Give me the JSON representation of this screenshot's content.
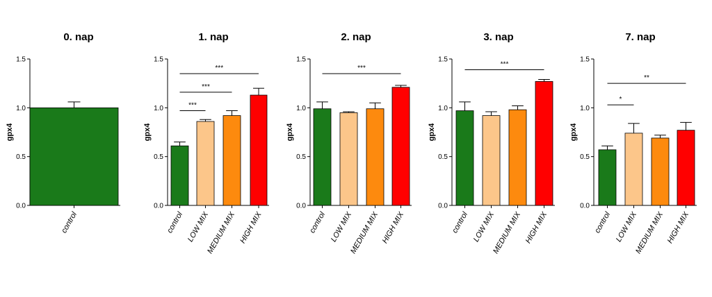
{
  "chart_data": [
    {
      "type": "bar",
      "title": "0. nap",
      "ylabel": "gpx4",
      "ylim": [
        0,
        1.5
      ],
      "yticks": [
        "0.0",
        "0.5",
        "1.0",
        "1.5"
      ],
      "categories": [
        "control"
      ],
      "values": [
        1.0
      ],
      "errors": [
        0.06
      ],
      "colors": [
        "#1a7a1a"
      ],
      "significance": []
    },
    {
      "type": "bar",
      "title": "1. nap",
      "ylabel": "gpx4",
      "ylim": [
        0,
        1.5
      ],
      "yticks": [
        "0.0",
        "0.5",
        "1.0",
        "1.5"
      ],
      "categories": [
        "control",
        "LOW MIX",
        "MEDIUM MIX",
        "HIGH MIX"
      ],
      "values": [
        0.61,
        0.86,
        0.92,
        1.13
      ],
      "errors": [
        0.04,
        0.02,
        0.05,
        0.07
      ],
      "colors": [
        "#1a7a1a",
        "#fcc68a",
        "#fd8a0e",
        "#ff0000"
      ],
      "significance": [
        {
          "from": 0,
          "to": 1,
          "y": 0.97,
          "label": "***"
        },
        {
          "from": 0,
          "to": 2,
          "y": 1.16,
          "label": "***"
        },
        {
          "from": 0,
          "to": 3,
          "y": 1.35,
          "label": "***"
        }
      ]
    },
    {
      "type": "bar",
      "title": "2. nap",
      "ylabel": "gpx4",
      "ylim": [
        0,
        1.5
      ],
      "yticks": [
        "0.0",
        "0.5",
        "1.0",
        "1.5"
      ],
      "categories": [
        "control",
        "LOW MIX",
        "MEDIUM MIX",
        "HIGH MIX"
      ],
      "values": [
        0.99,
        0.95,
        0.99,
        1.21
      ],
      "errors": [
        0.07,
        0.01,
        0.06,
        0.02
      ],
      "colors": [
        "#1a7a1a",
        "#fcc68a",
        "#fd8a0e",
        "#ff0000"
      ],
      "significance": [
        {
          "from": 0,
          "to": 3,
          "y": 1.35,
          "label": "***"
        }
      ]
    },
    {
      "type": "bar",
      "title": "3. nap",
      "ylabel": "gpx4",
      "ylim": [
        0,
        1.5
      ],
      "yticks": [
        "0.0",
        "0.5",
        "1.0",
        "1.5"
      ],
      "categories": [
        "control",
        "LOW MIX",
        "MEDIUM MIX",
        "HIGH MIX"
      ],
      "values": [
        0.97,
        0.92,
        0.98,
        1.27
      ],
      "errors": [
        0.09,
        0.04,
        0.04,
        0.02
      ],
      "colors": [
        "#1a7a1a",
        "#fcc68a",
        "#fd8a0e",
        "#ff0000"
      ],
      "significance": [
        {
          "from": 0,
          "to": 3,
          "y": 1.39,
          "label": "***"
        }
      ]
    },
    {
      "type": "bar",
      "title": "7. nap",
      "ylabel": "gpx4",
      "ylim": [
        0,
        1.5
      ],
      "yticks": [
        "0.0",
        "0.5",
        "1.0",
        "1.5"
      ],
      "categories": [
        "control",
        "LOW MIX",
        "MEDIUM MIX",
        "HIGH MIX"
      ],
      "values": [
        0.57,
        0.74,
        0.69,
        0.77
      ],
      "errors": [
        0.04,
        0.1,
        0.03,
        0.08
      ],
      "colors": [
        "#1a7a1a",
        "#fcc68a",
        "#fd8a0e",
        "#ff0000"
      ],
      "significance": [
        {
          "from": 0,
          "to": 1,
          "y": 1.03,
          "label": "*"
        },
        {
          "from": 0,
          "to": 3,
          "y": 1.25,
          "label": "**"
        }
      ]
    }
  ]
}
